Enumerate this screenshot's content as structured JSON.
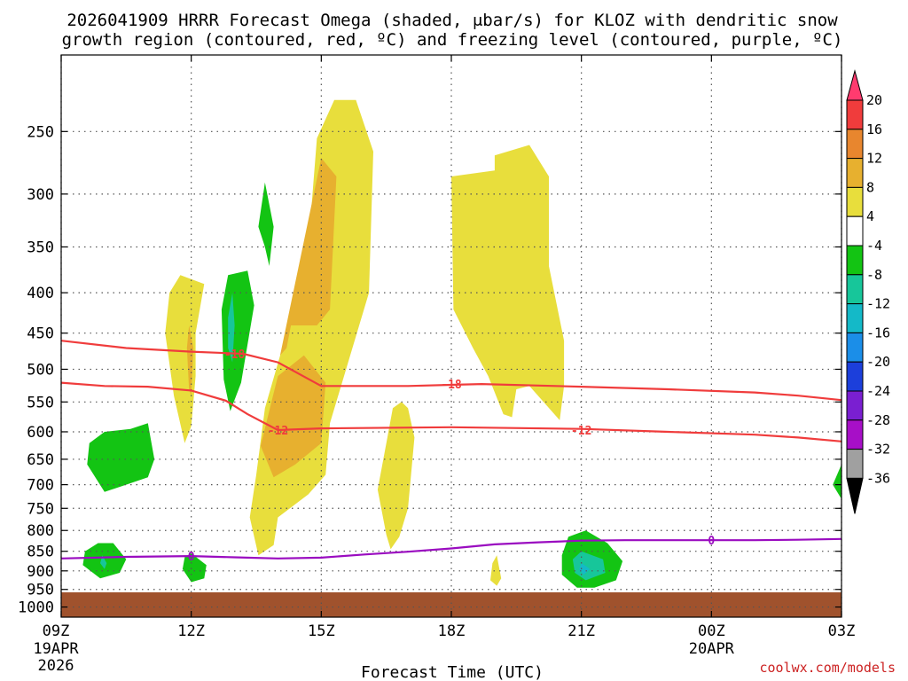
{
  "chart_data": {
    "type": "time-height cross section",
    "title_line1": "2026041909 HRRR Forecast Omega (shaded, μbar/s) for KLOZ with dendritic snow",
    "title_line2": "growth region (contoured, red, ºC) and freezing level (contoured, purple, ºC)",
    "xlabel": "Forecast Time (UTC)",
    "credit": "coolwx.com/models",
    "x_range_hours": [
      0,
      18
    ],
    "y_range_hpa": [
      200,
      1030
    ],
    "y_ticks": [
      250,
      300,
      350,
      400,
      450,
      500,
      550,
      600,
      650,
      700,
      750,
      800,
      850,
      900,
      950,
      1000
    ],
    "x_ticks": [
      {
        "h": 0,
        "label": "09Z",
        "sub1": "19APR",
        "sub2": "2026"
      },
      {
        "h": 3,
        "label": "12Z",
        "sub1": "",
        "sub2": ""
      },
      {
        "h": 6,
        "label": "15Z",
        "sub1": "",
        "sub2": ""
      },
      {
        "h": 9,
        "label": "18Z",
        "sub1": "",
        "sub2": ""
      },
      {
        "h": 12,
        "label": "21Z",
        "sub1": "",
        "sub2": ""
      },
      {
        "h": 15,
        "label": "00Z",
        "sub1": "20APR",
        "sub2": ""
      },
      {
        "h": 18,
        "label": "03Z",
        "sub1": "",
        "sub2": ""
      }
    ],
    "colorbar": {
      "levels": [
        "20",
        "16",
        "12",
        "8",
        "4",
        "-4",
        "-8",
        "-12",
        "-16",
        "-20",
        "-24",
        "-28",
        "-32",
        "-36"
      ],
      "colors": [
        "#ff3b6f",
        "#f03c3c",
        "#e8862e",
        "#e7b02f",
        "#e8de3c",
        "#ffffff",
        "#13c413",
        "#17c69a",
        "#14b9c8",
        "#1b8ee8",
        "#1c3fdb",
        "#7a1fd1",
        "#a70fc7",
        "#a0a0a0",
        "#000000"
      ]
    },
    "omega_regions": [
      {
        "color": "#e8de3c",
        "points": [
          [
            3.3,
            390
          ],
          [
            3.1,
            450
          ],
          [
            3.1,
            510
          ],
          [
            3.0,
            590
          ],
          [
            2.85,
            620
          ],
          [
            2.6,
            540
          ],
          [
            2.4,
            450
          ],
          [
            2.5,
            400
          ],
          [
            2.75,
            380
          ]
        ]
      },
      {
        "color": "#e7b02f",
        "points": [
          [
            2.95,
            440
          ],
          [
            3.05,
            470
          ],
          [
            3.0,
            540
          ],
          [
            2.95,
            530
          ],
          [
            2.9,
            470
          ]
        ]
      },
      {
        "color": "#e8de3c",
        "points": [
          [
            6.8,
            228
          ],
          [
            7.2,
            265
          ],
          [
            7.1,
            400
          ],
          [
            6.2,
            585
          ],
          [
            6.1,
            680
          ],
          [
            5.7,
            720
          ],
          [
            5.0,
            770
          ],
          [
            4.9,
            835
          ],
          [
            4.55,
            860
          ],
          [
            4.35,
            770
          ],
          [
            4.5,
            680
          ],
          [
            4.7,
            560
          ],
          [
            5.2,
            450
          ],
          [
            5.7,
            350
          ],
          [
            5.9,
            255
          ],
          [
            6.3,
            228
          ]
        ]
      },
      {
        "color": "#e7b02f",
        "points": [
          [
            6.0,
            270
          ],
          [
            6.35,
            285
          ],
          [
            6.2,
            420
          ],
          [
            5.9,
            440
          ],
          [
            5.3,
            440
          ],
          [
            5.2,
            470
          ],
          [
            5.05,
            480
          ]
        ]
      },
      {
        "color": "#e7b02f",
        "points": [
          [
            5.0,
            510
          ],
          [
            5.6,
            480
          ],
          [
            6.1,
            520
          ],
          [
            6.0,
            620
          ],
          [
            5.4,
            660
          ],
          [
            4.9,
            685
          ],
          [
            4.6,
            625
          ]
        ]
      },
      {
        "color": "#e8de3c",
        "points": [
          [
            7.85,
            550
          ],
          [
            8.0,
            560
          ],
          [
            8.15,
            610
          ],
          [
            8.0,
            750
          ],
          [
            7.8,
            815
          ],
          [
            7.6,
            845
          ],
          [
            7.5,
            810
          ],
          [
            7.3,
            710
          ],
          [
            7.5,
            620
          ],
          [
            7.65,
            560
          ]
        ]
      },
      {
        "color": "#e8de3c",
        "points": [
          [
            9.0,
            285
          ],
          [
            10.0,
            280
          ],
          [
            10.0,
            268
          ],
          [
            10.8,
            260
          ],
          [
            11.25,
            285
          ],
          [
            11.25,
            370
          ],
          [
            11.6,
            460
          ],
          [
            11.6,
            525
          ],
          [
            11.5,
            580
          ],
          [
            10.8,
            525
          ],
          [
            10.5,
            530
          ],
          [
            10.4,
            575
          ],
          [
            10.2,
            570
          ],
          [
            9.85,
            510
          ],
          [
            9.5,
            470
          ],
          [
            9.05,
            420
          ]
        ]
      },
      {
        "color": "#e8de3c",
        "points": [
          [
            10.05,
            860
          ],
          [
            10.15,
            920
          ],
          [
            10.05,
            940
          ],
          [
            9.9,
            925
          ],
          [
            9.95,
            880
          ]
        ]
      },
      {
        "color": "#13c413",
        "points": [
          [
            4.7,
            290
          ],
          [
            4.9,
            330
          ],
          [
            4.8,
            370
          ],
          [
            4.7,
            350
          ],
          [
            4.55,
            330
          ]
        ]
      },
      {
        "color": "#13c413",
        "points": [
          [
            4.3,
            375
          ],
          [
            4.45,
            415
          ],
          [
            4.15,
            520
          ],
          [
            3.9,
            565
          ],
          [
            3.75,
            515
          ],
          [
            3.7,
            420
          ],
          [
            3.85,
            380
          ]
        ]
      },
      {
        "color": "#17c69a",
        "points": [
          [
            3.95,
            400
          ],
          [
            4.0,
            440
          ],
          [
            3.95,
            490
          ],
          [
            3.85,
            470
          ],
          [
            3.85,
            430
          ]
        ]
      },
      {
        "color": "#13c413",
        "points": [
          [
            2.0,
            585
          ],
          [
            2.15,
            650
          ],
          [
            2.0,
            685
          ],
          [
            1.5,
            700
          ],
          [
            1.0,
            715
          ],
          [
            0.6,
            660
          ],
          [
            0.65,
            620
          ],
          [
            1.0,
            600
          ],
          [
            1.6,
            595
          ]
        ]
      },
      {
        "color": "#13c413",
        "points": [
          [
            1.2,
            830
          ],
          [
            1.5,
            870
          ],
          [
            1.35,
            905
          ],
          [
            0.9,
            920
          ],
          [
            0.5,
            885
          ],
          [
            0.55,
            850
          ],
          [
            0.85,
            830
          ]
        ]
      },
      {
        "color": "#17c69a",
        "points": [
          [
            0.95,
            860
          ],
          [
            1.05,
            880
          ],
          [
            1.0,
            895
          ],
          [
            0.9,
            880
          ]
        ]
      },
      {
        "color": "#13c413",
        "points": [
          [
            3.0,
            855
          ],
          [
            3.35,
            885
          ],
          [
            3.3,
            920
          ],
          [
            3.0,
            930
          ],
          [
            2.8,
            895
          ],
          [
            2.85,
            865
          ]
        ]
      },
      {
        "color": "#13c413",
        "points": [
          [
            12.1,
            800
          ],
          [
            12.6,
            830
          ],
          [
            12.95,
            875
          ],
          [
            12.8,
            925
          ],
          [
            12.3,
            945
          ],
          [
            11.9,
            945
          ],
          [
            11.55,
            910
          ],
          [
            11.55,
            860
          ],
          [
            11.7,
            815
          ]
        ]
      },
      {
        "color": "#17c69a",
        "points": [
          [
            12.0,
            850
          ],
          [
            12.5,
            870
          ],
          [
            12.55,
            905
          ],
          [
            12.1,
            925
          ],
          [
            11.85,
            905
          ],
          [
            11.8,
            870
          ]
        ]
      },
      {
        "color": "#14b9c8",
        "points": [
          [
            12.0,
            880
          ],
          [
            12.2,
            895
          ],
          [
            12.05,
            910
          ],
          [
            11.95,
            895
          ]
        ]
      },
      {
        "color": "#13c413",
        "points": [
          [
            18.0,
            660
          ],
          [
            18.0,
            730
          ],
          [
            17.8,
            700
          ]
        ]
      }
    ],
    "contours": [
      {
        "name": "-18",
        "color": "#f03c3c",
        "points": [
          [
            0,
            460
          ],
          [
            1.5,
            470
          ],
          [
            3,
            475
          ],
          [
            4.2,
            478
          ],
          [
            5.0,
            490
          ],
          [
            6.0,
            525
          ],
          [
            8,
            525
          ],
          [
            9.7,
            522
          ],
          [
            12,
            526
          ],
          [
            14,
            530
          ],
          [
            16,
            535
          ],
          [
            17,
            540
          ],
          [
            18,
            547
          ]
        ],
        "label_at": [
          [
            4.0,
            478
          ],
          [
            9.0,
            522
          ]
        ]
      },
      {
        "name": "-12",
        "color": "#f03c3c",
        "points": [
          [
            0,
            520
          ],
          [
            1,
            525
          ],
          [
            2,
            526
          ],
          [
            3,
            532
          ],
          [
            3.8,
            548
          ],
          [
            4.3,
            570
          ],
          [
            5.0,
            597
          ],
          [
            6,
            594
          ],
          [
            9,
            592
          ],
          [
            12,
            595
          ],
          [
            14,
            600
          ],
          [
            16,
            605
          ],
          [
            17,
            610
          ],
          [
            18,
            617
          ]
        ],
        "label_at": [
          [
            5.0,
            597
          ],
          [
            12.0,
            597
          ]
        ]
      },
      {
        "name": "0",
        "color": "#9a0cc0",
        "points": [
          [
            0,
            868
          ],
          [
            1.5,
            864
          ],
          [
            3,
            862
          ],
          [
            4,
            865
          ],
          [
            5,
            868
          ],
          [
            6,
            866
          ],
          [
            7,
            858
          ],
          [
            8,
            851
          ],
          [
            9,
            843
          ],
          [
            10,
            833
          ],
          [
            11,
            828
          ],
          [
            12,
            824
          ],
          [
            13,
            823
          ],
          [
            14,
            823
          ],
          [
            15,
            823
          ],
          [
            16,
            823
          ],
          [
            17,
            822
          ],
          [
            18,
            820
          ]
        ],
        "label_at": [
          [
            3.0,
            862
          ],
          [
            15.0,
            823
          ]
        ]
      }
    ]
  }
}
